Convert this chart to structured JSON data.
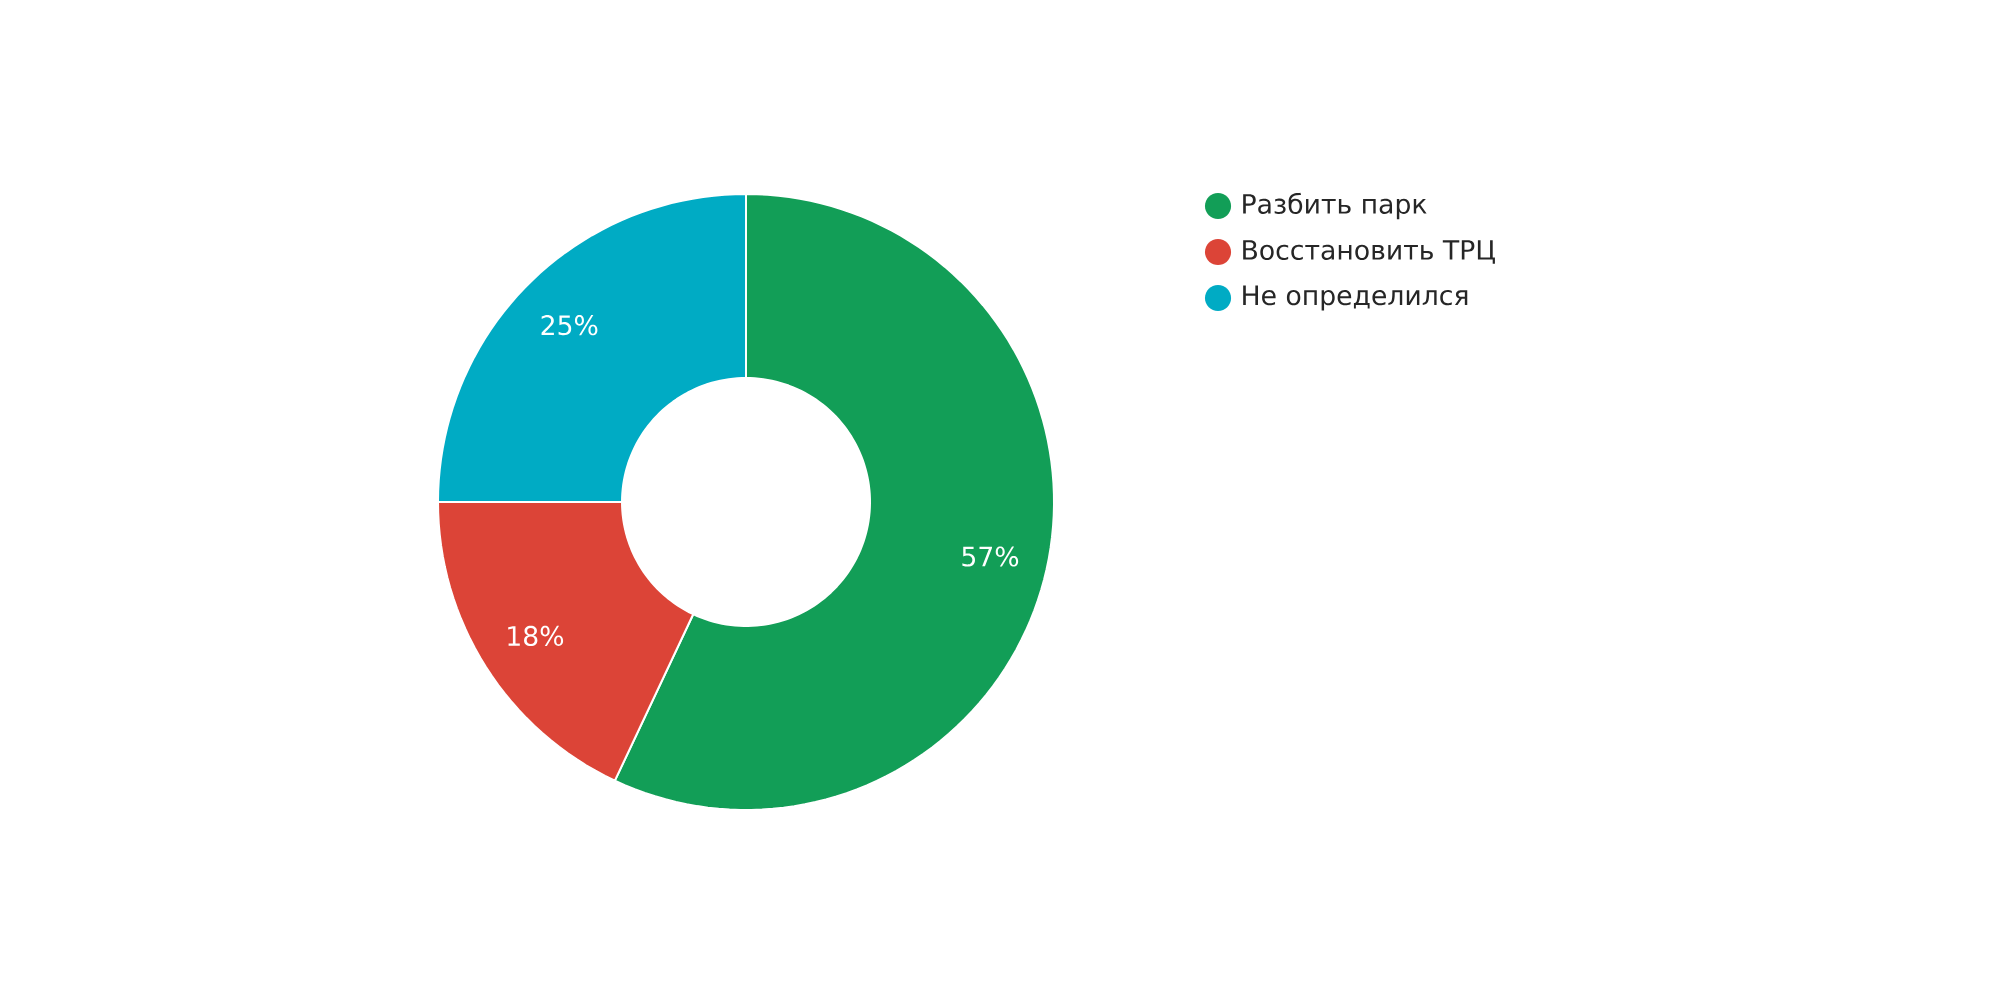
{
  "chart_data": {
    "type": "donut",
    "categories": [
      "Разбить парк",
      "Восстановить ТРЦ",
      "Не определился"
    ],
    "values": [
      57,
      18,
      25
    ],
    "colors": [
      "#129e57",
      "#dc4437",
      "#00abc4"
    ],
    "value_labels": [
      "57%",
      "18%",
      "25%"
    ],
    "legend": "top right"
  }
}
